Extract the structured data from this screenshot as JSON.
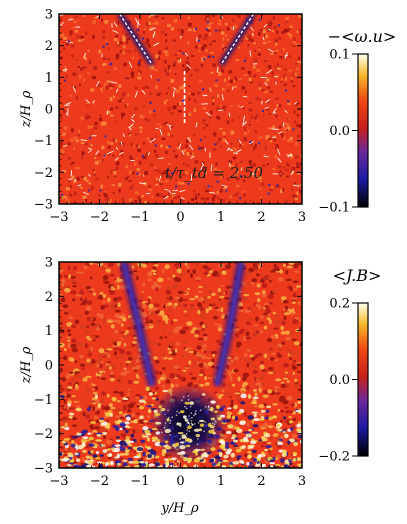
{
  "chart_data": [
    {
      "type": "heatmap",
      "panel": "top",
      "xlabel": "",
      "ylabel": "z/H_ρ",
      "xlim": [
        -3,
        3
      ],
      "ylim": [
        -3,
        3
      ],
      "x_ticks": [
        -3,
        -2,
        -1,
        0,
        1,
        2,
        3
      ],
      "x_tick_labels": [
        "−3",
        "−2",
        "−1",
        "0",
        "1",
        "2",
        "3"
      ],
      "y_ticks": [
        3,
        2,
        1,
        0,
        -1,
        -2,
        -3
      ],
      "y_tick_labels": [
        "3",
        "2",
        "1",
        "0",
        "−1",
        "−2",
        "−3"
      ],
      "annotation": "t/τ_td = 2.50",
      "colorbar": {
        "title": "−<ω.u>",
        "range": [
          -0.1,
          0.1
        ],
        "ticks": [
          0.1,
          0.0,
          -0.1
        ],
        "tick_labels": [
          "0.1",
          "0.0",
          "−0.1"
        ],
        "colormap": "red-temperature"
      },
      "features": [
        {
          "kind": "noise",
          "base": "#ee3a1c"
        },
        {
          "kind": "blue-white streak",
          "path": [
            [
              -1.5,
              3.0
            ],
            [
              -0.7,
              1.4
            ]
          ]
        },
        {
          "kind": "blue-white streak",
          "path": [
            [
              1.8,
              3.0
            ],
            [
              1.0,
              1.4
            ]
          ]
        },
        {
          "kind": "white vertical streak",
          "path": [
            [
              0.1,
              1.2
            ],
            [
              0.1,
              -0.5
            ]
          ]
        }
      ]
    },
    {
      "type": "heatmap",
      "panel": "bottom",
      "xlabel": "y/H_ρ",
      "ylabel": "z/H_ρ",
      "xlim": [
        -3,
        3
      ],
      "ylim": [
        -3,
        3
      ],
      "x_ticks": [
        -3,
        -2,
        -1,
        0,
        1,
        2,
        3
      ],
      "x_tick_labels": [
        "−3",
        "−2",
        "−1",
        "0",
        "1",
        "2",
        "3"
      ],
      "y_ticks": [
        3,
        2,
        1,
        0,
        -1,
        -2,
        -3
      ],
      "y_tick_labels": [
        "3",
        "2",
        "1",
        "0",
        "−1",
        "−2",
        "−3"
      ],
      "colorbar": {
        "title": "<J.B>",
        "range": [
          -0.2,
          0.2
        ],
        "ticks": [
          0.2,
          0.0,
          -0.2
        ],
        "tick_labels": [
          "0.2",
          "0.0",
          "−0.2"
        ],
        "colormap": "red-temperature"
      },
      "features": [
        {
          "kind": "noise",
          "base": "#ee3a1c"
        },
        {
          "kind": "blue band",
          "path": [
            [
              -1.4,
              3.0
            ],
            [
              -1.0,
              1.0
            ],
            [
              -0.7,
              -0.6
            ]
          ]
        },
        {
          "kind": "blue band",
          "path": [
            [
              1.5,
              3.0
            ],
            [
              1.2,
              1.0
            ],
            [
              0.9,
              -0.6
            ]
          ]
        },
        {
          "kind": "dark blob",
          "center": [
            0.2,
            -1.7
          ],
          "radius": 0.75
        },
        {
          "kind": "yellow-white speckle region",
          "z_below": -0.6
        }
      ]
    }
  ]
}
